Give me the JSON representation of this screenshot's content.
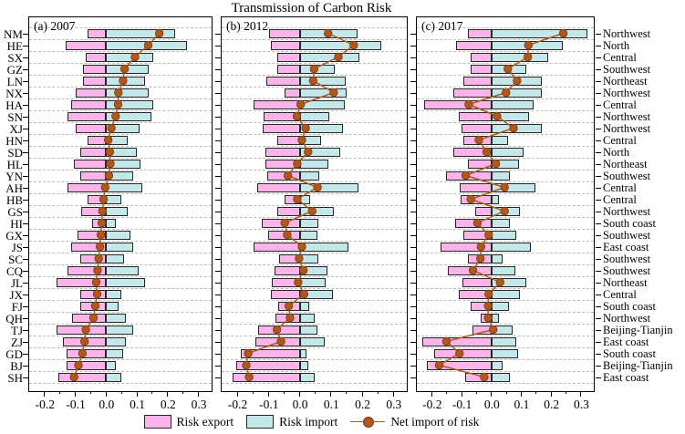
{
  "title": "Transmission of Carbon Risk",
  "legend": {
    "risk_export": "Risk export",
    "risk_import": "Risk import",
    "net_import": "Net import of risk"
  },
  "colors": {
    "export": "#fab4ea",
    "import": "#c4e8ea",
    "net": "#b0581c",
    "net_edge": "#7c3c10",
    "grid": "#bcbcbc",
    "bar_edge": "#262626"
  },
  "chart_data": {
    "type": "bar",
    "orientation": "horizontal",
    "title": "Transmission of Carbon Risk",
    "grid": "dashed-horizontal",
    "legend_position": "bottom",
    "xlim": [
      -0.25,
      0.34
    ],
    "x_ticks": [
      -0.2,
      -0.1,
      0.0,
      0.1,
      0.2,
      0.3
    ],
    "x_tick_labels": [
      "-0.2",
      "-0.1",
      "0.0",
      "0.1",
      "0.2",
      "0.3"
    ],
    "x_minor_ticks": [
      -0.15,
      -0.05,
      0.05,
      0.15,
      0.25
    ],
    "categories": [
      "NM",
      "HE",
      "SX",
      "GZ",
      "LN",
      "NX",
      "HA",
      "SN",
      "XJ",
      "HN",
      "SD",
      "HL",
      "YN",
      "AH",
      "HB",
      "GS",
      "HI",
      "GX",
      "JS",
      "SC",
      "CQ",
      "JL",
      "JX",
      "FJ",
      "QH",
      "TJ",
      "ZJ",
      "GD",
      "BJ",
      "SH"
    ],
    "category_regions": [
      "Northwest",
      "North",
      "Central",
      "Southwest",
      "Northeast",
      "Northwest",
      "Central",
      "Northwest",
      "Northwest",
      "Central",
      "North",
      "Northeast",
      "Southwest",
      "Central",
      "Central",
      "Northwest",
      "South coast",
      "Southwest",
      "East coast",
      "Southwest",
      "Southwest",
      "Northeast",
      "Central",
      "South coast",
      "Northwest",
      "Beijing-Tianjin",
      "East coast",
      "South coast",
      "Beijing-Tianjin",
      "East coast"
    ],
    "panels": [
      {
        "id": "a",
        "label": "(a) 2007",
        "series": [
          {
            "name": "Risk export",
            "type": "bar",
            "values": [
              -0.06,
              -0.13,
              -0.065,
              -0.075,
              -0.075,
              -0.1,
              -0.115,
              -0.125,
              -0.1,
              -0.06,
              -0.085,
              -0.105,
              -0.085,
              -0.125,
              -0.06,
              -0.08,
              -0.046,
              -0.093,
              -0.115,
              -0.083,
              -0.126,
              -0.16,
              -0.083,
              -0.083,
              -0.11,
              -0.162,
              -0.141,
              -0.128,
              -0.128,
              -0.155
            ]
          },
          {
            "name": "Risk import",
            "type": "bar",
            "values": [
              0.223,
              0.263,
              0.152,
              0.137,
              0.128,
              0.137,
              0.152,
              0.147,
              0.11,
              0.07,
              0.099,
              0.111,
              0.089,
              0.118,
              0.048,
              0.07,
              0.031,
              0.079,
              0.089,
              0.058,
              0.105,
              0.128,
              0.05,
              0.041,
              0.065,
              0.089,
              0.065,
              0.055,
              0.031,
              0.048
            ]
          },
          {
            "name": "Net import of risk",
            "type": "line",
            "values": [
              0.173,
              0.137,
              0.094,
              0.06,
              0.055,
              0.04,
              0.039,
              0.031,
              0.017,
              0.007,
              0.012,
              0.014,
              0.009,
              -0.003,
              -0.008,
              -0.012,
              -0.014,
              -0.017,
              -0.02,
              -0.024,
              -0.028,
              -0.032,
              -0.029,
              -0.035,
              -0.041,
              -0.066,
              -0.07,
              -0.077,
              -0.09,
              -0.104
            ]
          }
        ]
      },
      {
        "id": "b",
        "label": "(b) 2012",
        "series": [
          {
            "name": "Risk export",
            "type": "bar",
            "values": [
              -0.098,
              -0.093,
              -0.073,
              -0.071,
              -0.107,
              -0.048,
              -0.148,
              -0.116,
              -0.119,
              -0.071,
              -0.109,
              -0.109,
              -0.105,
              -0.135,
              -0.048,
              -0.071,
              -0.121,
              -0.1,
              -0.149,
              -0.067,
              -0.08,
              -0.09,
              -0.092,
              -0.069,
              -0.079,
              -0.133,
              -0.143,
              -0.188,
              -0.202,
              -0.214
            ]
          },
          {
            "name": "Risk import",
            "type": "bar",
            "values": [
              0.184,
              0.262,
              0.19,
              0.111,
              0.148,
              0.149,
              0.143,
              0.095,
              0.138,
              0.067,
              0.129,
              0.092,
              0.062,
              0.189,
              0.033,
              0.108,
              0.06,
              0.057,
              0.157,
              0.06,
              0.089,
              0.083,
              0.105,
              0.029,
              0.048,
              0.057,
              0.079,
              0.021,
              0.027,
              0.048
            ]
          },
          {
            "name": "Net import of risk",
            "type": "line",
            "values": [
              0.091,
              0.173,
              0.124,
              0.046,
              0.043,
              0.109,
              0.003,
              -0.009,
              0.019,
              0.007,
              0.027,
              -0.008,
              -0.038,
              0.057,
              -0.008,
              0.04,
              -0.048,
              -0.04,
              0.007,
              -0.002,
              0.012,
              -0.005,
              0.014,
              -0.035,
              -0.031,
              -0.073,
              -0.06,
              -0.165,
              -0.171,
              -0.162
            ]
          }
        ]
      },
      {
        "id": "c",
        "label": "(c) 2017",
        "series": [
          {
            "name": "Risk export",
            "type": "bar",
            "values": [
              -0.08,
              -0.119,
              -0.071,
              -0.069,
              -0.095,
              -0.129,
              -0.226,
              -0.109,
              -0.099,
              -0.094,
              -0.128,
              -0.078,
              -0.151,
              -0.107,
              -0.102,
              -0.054,
              -0.121,
              -0.095,
              -0.171,
              -0.078,
              -0.147,
              -0.097,
              -0.109,
              -0.071,
              -0.037,
              -0.064,
              -0.232,
              -0.192,
              -0.216,
              -0.089
            ]
          },
          {
            "name": "Risk import",
            "type": "bar",
            "values": [
              0.322,
              0.239,
              0.191,
              0.117,
              0.169,
              0.169,
              0.141,
              0.125,
              0.168,
              0.055,
              0.108,
              0.091,
              0.062,
              0.146,
              0.025,
              0.095,
              0.063,
              0.084,
              0.131,
              0.038,
              0.079,
              0.117,
              0.095,
              0.06,
              0.025,
              0.072,
              0.084,
              0.089,
              0.038,
              0.063
            ]
          },
          {
            "name": "Net import of risk",
            "type": "line",
            "values": [
              0.241,
              0.124,
              0.122,
              0.055,
              0.086,
              0.049,
              -0.076,
              0.019,
              0.074,
              -0.042,
              -0.016,
              0.015,
              -0.086,
              0.044,
              -0.069,
              0.044,
              -0.047,
              -0.009,
              -0.035,
              -0.037,
              -0.062,
              0.029,
              -0.009,
              -0.011,
              -0.011,
              0.006,
              -0.151,
              -0.107,
              -0.175,
              -0.024
            ]
          }
        ]
      }
    ]
  }
}
